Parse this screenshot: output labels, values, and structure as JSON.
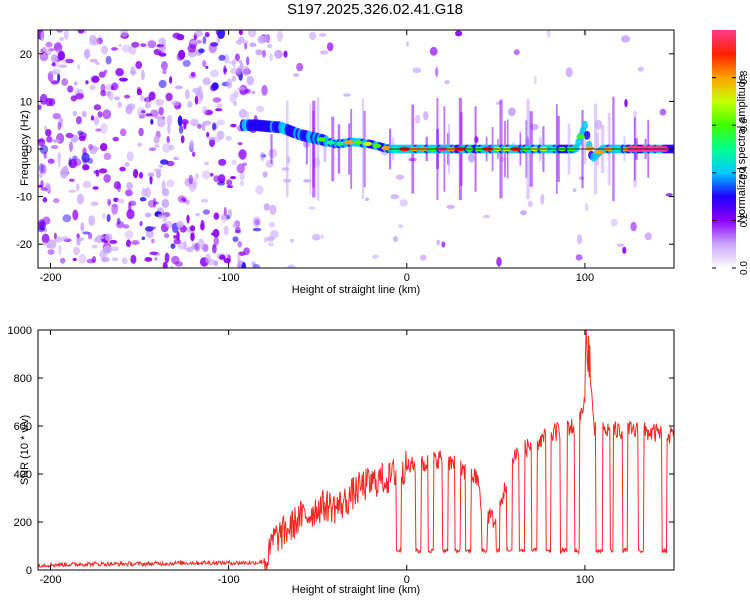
{
  "chart_data": [
    {
      "type": "heatmap",
      "title": "S197.2025.326.02.41.G18",
      "xlabel": "Height of straight line (km)",
      "ylabel": "Frequency (Hz)",
      "xlim": [
        -207,
        150
      ],
      "ylim": [
        -25,
        25
      ],
      "xticks": [
        -200,
        -100,
        0,
        100
      ],
      "yticks": [
        -20,
        -10,
        0,
        10,
        20
      ],
      "trace": [
        {
          "x": -92,
          "f": 5
        },
        {
          "x": -85,
          "f": 5
        },
        {
          "x": -70,
          "f": 4.5
        },
        {
          "x": -60,
          "f": 3
        },
        {
          "x": -48,
          "f": 2
        },
        {
          "x": -40,
          "f": 1
        },
        {
          "x": -30,
          "f": 1.5
        },
        {
          "x": -20,
          "f": 1
        },
        {
          "x": -10,
          "f": 0
        },
        {
          "x": 0,
          "f": 0
        },
        {
          "x": 50,
          "f": 0
        },
        {
          "x": 95,
          "f": 0
        },
        {
          "x": 100,
          "f": 5
        },
        {
          "x": 104,
          "f": -2
        },
        {
          "x": 110,
          "f": 0
        },
        {
          "x": 150,
          "f": 0
        }
      ],
      "colorbar": {
        "label": "Normalized spectral amplitude",
        "ticks": [
          0.0,
          0.2,
          0.4,
          0.6,
          0.8
        ],
        "tick_labels": [
          "0.0",
          "0.2",
          "0.4",
          "0.6",
          "0.8"
        ],
        "range": [
          0,
          1
        ],
        "colors": [
          "#ffffff",
          "#c9a6ff",
          "#8c00ff",
          "#1f00ff",
          "#00c8ff",
          "#00ff90",
          "#40ff00",
          "#c8ff00",
          "#ffa000",
          "#ff2000",
          "#ff3c8c"
        ]
      }
    },
    {
      "type": "line",
      "xlabel": "Height of straight line (km)",
      "ylabel": "SNR (10 * v/v)",
      "xlim": [
        -207,
        150
      ],
      "ylim": [
        0,
        1000
      ],
      "xticks": [
        -200,
        -100,
        0,
        100
      ],
      "yticks": [
        0,
        200,
        400,
        600,
        800,
        1000
      ],
      "color": "#ee2a24",
      "series": [
        {
          "name": "SNR",
          "x": [
            -207,
            -180,
            -150,
            -120,
            -100,
            -85,
            -78,
            -75,
            -70,
            -65,
            -60,
            -55,
            -50,
            -45,
            -40,
            -35,
            -30,
            -25,
            -20,
            -15,
            -10,
            -5,
            0,
            10,
            20,
            30,
            40,
            43,
            46,
            50,
            60,
            70,
            80,
            90,
            95,
            100,
            102,
            105,
            110,
            120,
            130,
            140,
            150
          ],
          "y": [
            20,
            25,
            25,
            30,
            30,
            30,
            40,
            130,
            150,
            180,
            220,
            230,
            260,
            270,
            260,
            280,
            320,
            350,
            360,
            380,
            380,
            420,
            430,
            440,
            470,
            420,
            380,
            170,
            230,
            200,
            480,
            520,
            560,
            600,
            590,
            700,
            900,
            600,
            580,
            580,
            580,
            570,
            560
          ]
        }
      ]
    }
  ]
}
